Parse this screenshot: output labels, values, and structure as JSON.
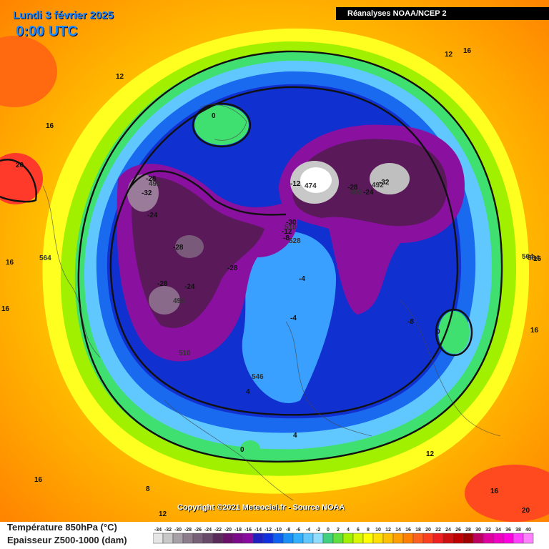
{
  "header": {
    "date": "Lundi 3 février 2025",
    "time": "0:00 UTC",
    "source": "Réanalyses NOAA/NCEP 2"
  },
  "footer": {
    "copyright": "Copyright ©2021 Meteociel.fr - Source NOAA"
  },
  "legend": {
    "line1": "Température 850hPa (°C)",
    "line2": "Epaisseur Z500-1000 (dam)"
  },
  "scale": {
    "values": [
      "-34",
      "-32",
      "-30",
      "-28",
      "-26",
      "-24",
      "-22",
      "-20",
      "-18",
      "-16",
      "-14",
      "-12",
      "-10",
      "-8",
      "-6",
      "-4",
      "-2",
      "0",
      "2",
      "4",
      "6",
      "8",
      "10",
      "12",
      "14",
      "16",
      "18",
      "20",
      "22",
      "24",
      "26",
      "28",
      "30",
      "32",
      "34",
      "36",
      "38",
      "40"
    ],
    "colors": [
      "#e6e6e6",
      "#c8c8c8",
      "#a8a0a8",
      "#8c7c8c",
      "#786078",
      "#6a4a6a",
      "#5a2a5a",
      "#6a106a",
      "#7a0a8a",
      "#8a0aa0",
      "#2020c0",
      "#1030e0",
      "#1060f0",
      "#1890f8",
      "#30b0ff",
      "#60c8ff",
      "#90ddff",
      "#40d080",
      "#60e040",
      "#a0f000",
      "#d8f800",
      "#ffff00",
      "#ffe000",
      "#ffc000",
      "#ffa000",
      "#ff8000",
      "#ff6020",
      "#ff4020",
      "#f02020",
      "#d01010",
      "#c00000",
      "#a00000",
      "#c00060",
      "#e000a0",
      "#f000c0",
      "#ff00e0",
      "#ff40ff",
      "#ff80ff"
    ]
  },
  "map_labels": {
    "temps": [
      "16",
      "12",
      "12",
      "16",
      "20",
      "16",
      "16",
      "0",
      "-28",
      "-32",
      "-24",
      "-28",
      "-28",
      "-24",
      "-28",
      "-12",
      "-28",
      "-24",
      "-32",
      "-30",
      "-12",
      "-8",
      "-4",
      "-4",
      "-8",
      "0",
      "16",
      "16",
      "4",
      "4",
      "0",
      "8",
      "12",
      "12",
      "16",
      "16",
      "20"
    ],
    "thickness": [
      "492",
      "492",
      "510",
      "546",
      "564",
      "564",
      "510",
      "528",
      "492",
      "492",
      "474",
      "564"
    ]
  },
  "icons": {
    "map": "geopotential-temperature-map"
  }
}
